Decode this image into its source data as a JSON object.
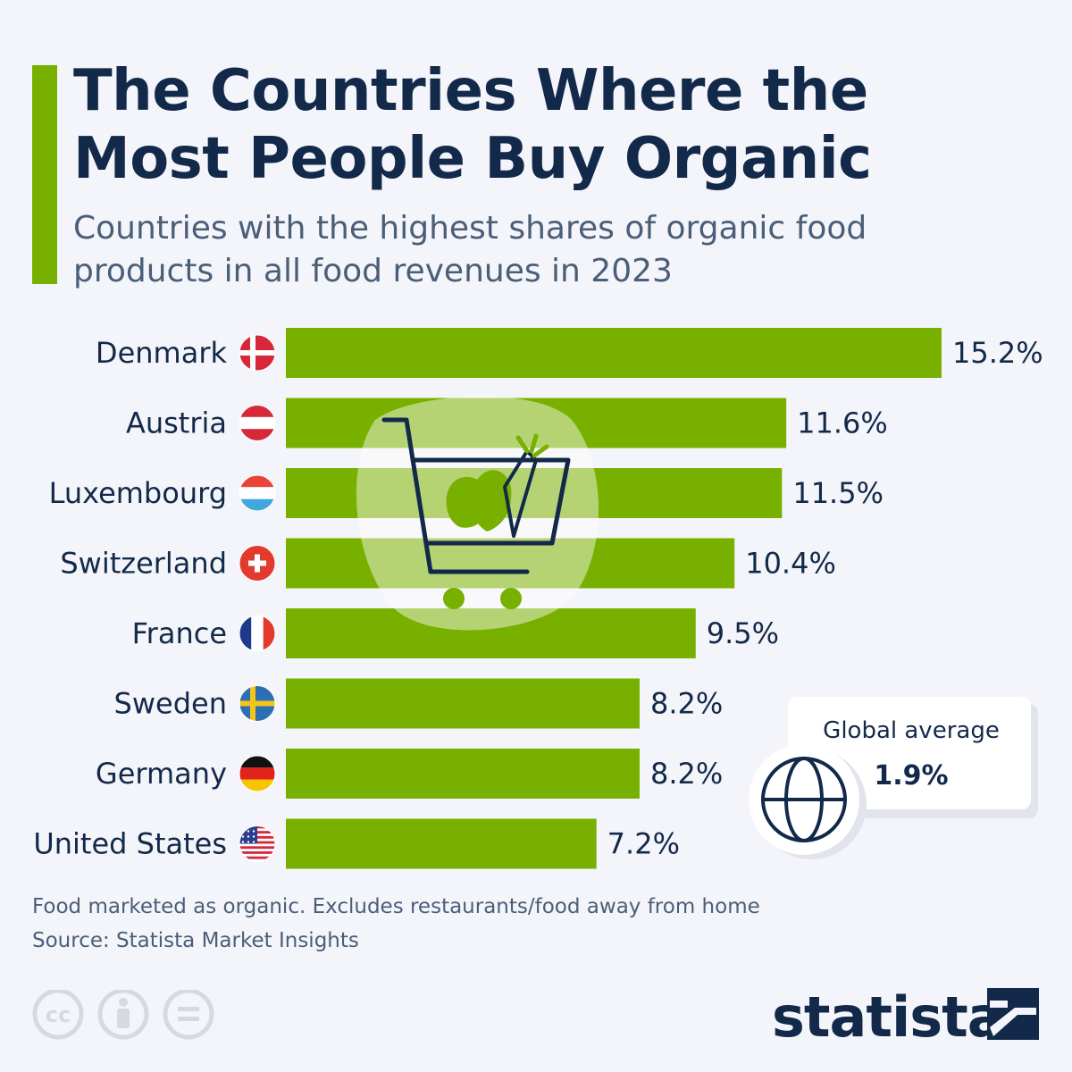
{
  "header": {
    "title_line1": "The Countries Where the",
    "title_line2": "Most People Buy Organic",
    "subtitle_line1": "Countries with the highest shares of organic food",
    "subtitle_line2": "products in all food revenues in 2023"
  },
  "chart_data": {
    "type": "bar",
    "orientation": "horizontal",
    "categories": [
      "Denmark",
      "Austria",
      "Luxembourg",
      "Switzerland",
      "France",
      "Sweden",
      "Germany",
      "United States"
    ],
    "values": [
      15.2,
      11.6,
      11.5,
      10.4,
      9.5,
      8.2,
      8.2,
      7.2
    ],
    "value_labels": [
      "15.2%",
      "11.6%",
      "11.5%",
      "10.4%",
      "9.5%",
      "8.2%",
      "8.2%",
      "7.2%"
    ],
    "unit": "%",
    "bar_color": "#78b000",
    "grid": false,
    "annotation": {
      "label": "Global average",
      "value_label": "1.9%",
      "value": 1.9,
      "icon": "globe-icon"
    }
  },
  "footer": {
    "note": "Food marketed as organic. Excludes restaurants/food away from home",
    "source": "Source: Statista Market Insights",
    "brand": "statista",
    "license_icons": [
      "cc-icon",
      "attribution-icon",
      "no-derivatives-icon"
    ]
  },
  "colors": {
    "accent": "#78b000",
    "title": "#13294a",
    "text": "#4a5e78",
    "background": "#f4f5fa"
  },
  "flags": [
    "denmark-flag-icon",
    "austria-flag-icon",
    "luxembourg-flag-icon",
    "switzerland-flag-icon",
    "france-flag-icon",
    "sweden-flag-icon",
    "germany-flag-icon",
    "united-states-flag-icon"
  ],
  "decoration": "shopping-cart-icon"
}
